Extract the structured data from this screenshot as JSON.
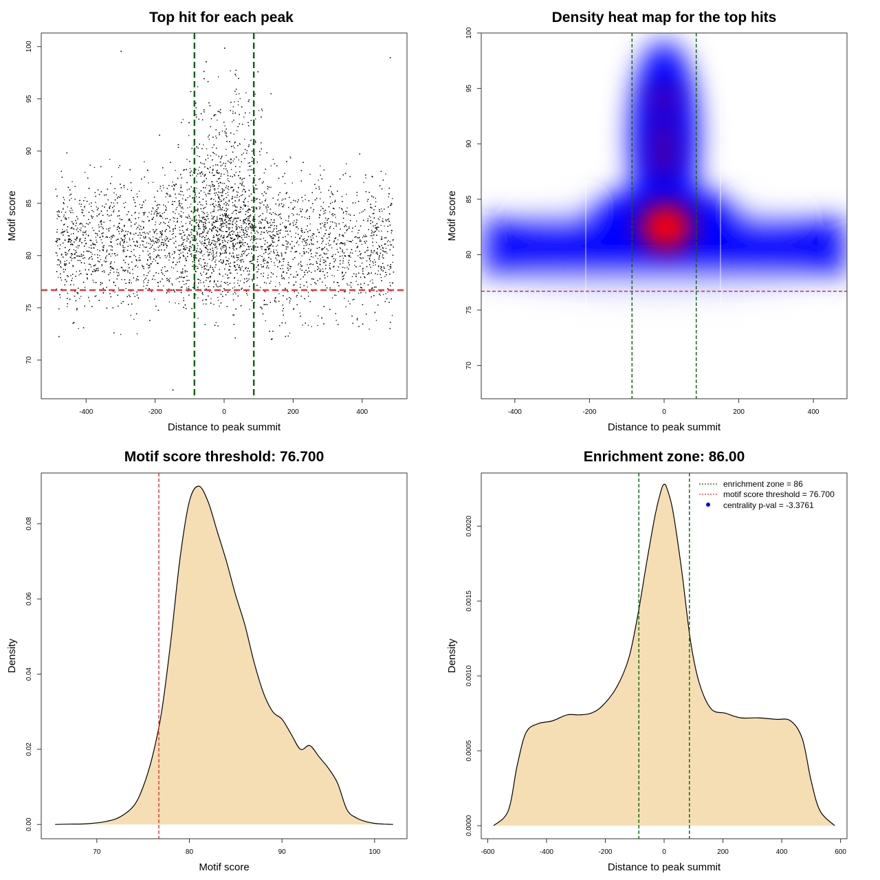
{
  "chart_data": [
    {
      "type": "scatter",
      "title": "Top hit for each peak",
      "xlabel": "Distance to peak summit",
      "ylabel": "Motif score",
      "xlim": [
        -530,
        530
      ],
      "ylim": [
        66.3,
        101.3
      ],
      "xticks": [
        -400,
        -200,
        0,
        200,
        400
      ],
      "yticks": [
        70,
        75,
        80,
        85,
        90,
        95,
        100
      ],
      "point_color": "#000000",
      "hlines": [
        {
          "y": 76.7,
          "color": "#ee2c2c",
          "style": "dashed"
        }
      ],
      "vlines": [
        {
          "x": -86,
          "color": "#006400",
          "style": "dashed"
        },
        {
          "x": 86,
          "color": "#006400",
          "style": "dashed"
        }
      ],
      "point_count_approx": 9000,
      "points_sample": [
        [
          -480,
          72.3
        ],
        [
          -150,
          67.2
        ],
        [
          -300,
          99.6
        ],
        [
          0,
          99.9
        ],
        [
          480,
          99.0
        ],
        [
          40,
          97.0
        ],
        [
          -60,
          94.0
        ],
        [
          20,
          90.5
        ],
        [
          -10,
          83.0
        ],
        [
          -350,
          81.0
        ],
        [
          350,
          80.0
        ],
        [
          200,
          78.0
        ],
        [
          -250,
          76.0
        ],
        [
          400,
          73.5
        ],
        [
          -100,
          88.0
        ],
        [
          120,
          86.0
        ]
      ]
    },
    {
      "type": "heatmap",
      "title": "Density heat map for the top hits",
      "xlabel": "Distance to peak summit",
      "ylabel": "Motif score",
      "xlim": [
        -490,
        490
      ],
      "ylim": [
        67.0,
        100.0
      ],
      "xticks": [
        -400,
        -200,
        0,
        200,
        400
      ],
      "yticks": [
        70,
        75,
        80,
        85,
        90,
        95,
        100
      ],
      "colors": {
        "low": "#ffffff",
        "mid": "#0000ff",
        "high": "#ff0000"
      },
      "hotspots": [
        {
          "x": 5,
          "y": 82.5,
          "intensity": "high"
        },
        {
          "x": 0,
          "y": 88.3,
          "intensity": "medium"
        },
        {
          "x": 0,
          "y": 90.7,
          "intensity": "medium"
        },
        {
          "x": 0,
          "y": 94.0,
          "intensity": "medium"
        }
      ],
      "hlines": [
        {
          "y": 76.7,
          "color": "#cd3333",
          "style": "dashed"
        }
      ],
      "vlines": [
        {
          "x": -86,
          "color": "#006400",
          "style": "dashed"
        },
        {
          "x": 86,
          "color": "#006400",
          "style": "dashed"
        }
      ]
    },
    {
      "type": "area",
      "title": "Motif score threshold: 76.700",
      "xlabel": "Motif score",
      "ylabel": "Density",
      "xlim": [
        64,
        103.5
      ],
      "ylim": [
        -0.0038,
        0.0935
      ],
      "xticks": [
        70,
        80,
        90,
        100
      ],
      "yticks": [
        0.0,
        0.02,
        0.04,
        0.06,
        0.08
      ],
      "ytick_labels": [
        "0.00",
        "0.02",
        "0.04",
        "0.06",
        "0.08"
      ],
      "fill_color": "#f5deb3",
      "vlines": [
        {
          "x": 76.7,
          "color": "#ee2c2c",
          "style": "dashed"
        }
      ],
      "x": [
        65.5,
        67,
        69,
        71,
        72.5,
        74,
        75,
        76,
        77,
        78,
        79,
        80,
        81,
        82,
        83,
        84,
        85,
        86,
        87,
        88,
        89,
        90,
        91,
        92,
        93,
        94,
        95,
        96,
        97,
        98,
        99,
        100,
        101,
        102
      ],
      "y": [
        0.0,
        0.0001,
        0.0002,
        0.0008,
        0.002,
        0.005,
        0.01,
        0.018,
        0.03,
        0.049,
        0.071,
        0.086,
        0.09,
        0.086,
        0.078,
        0.07,
        0.061,
        0.053,
        0.043,
        0.035,
        0.03,
        0.028,
        0.024,
        0.02,
        0.021,
        0.018,
        0.015,
        0.011,
        0.004,
        0.0018,
        0.0008,
        0.0003,
        0.0001,
        0.0
      ]
    },
    {
      "type": "area",
      "title": "Enrichment zone: 86.00",
      "xlabel": "Distance to peak summit",
      "ylabel": "Density",
      "xlim": [
        -622,
        622
      ],
      "ylim": [
        -8.75e-05,
        0.002355
      ],
      "xticks": [
        -600,
        -400,
        -200,
        0,
        200,
        400,
        600
      ],
      "yticks": [
        0.0,
        0.0005,
        0.001,
        0.0015,
        0.002
      ],
      "ytick_labels": [
        "0.0000",
        "0.0005",
        "0.0010",
        "0.0015",
        "0.0020"
      ],
      "fill_color": "#f5deb3",
      "vlines": [
        {
          "x": -86,
          "color": "#006400",
          "style": "dashed"
        },
        {
          "x": 86,
          "color": "#006400",
          "style": "dashed"
        }
      ],
      "x": [
        -580,
        -530,
        -500,
        -470,
        -430,
        -380,
        -330,
        -290,
        -250,
        -210,
        -160,
        -120,
        -90,
        -60,
        -30,
        -10,
        0,
        10,
        30,
        60,
        90,
        120,
        160,
        210,
        260,
        320,
        380,
        430,
        470,
        500,
        530,
        580
      ],
      "y": [
        0.0,
        0.0001,
        0.0004,
        0.00062,
        0.00068,
        0.0007,
        0.00074,
        0.00074,
        0.00075,
        0.0008,
        0.00093,
        0.00112,
        0.0014,
        0.00175,
        0.00208,
        0.00224,
        0.00228,
        0.00225,
        0.0021,
        0.0017,
        0.00123,
        0.00095,
        0.00078,
        0.00075,
        0.00072,
        0.00072,
        0.00071,
        0.0007,
        0.00058,
        0.0003,
        0.0001,
        0.0
      ],
      "legend": {
        "position": "top-right",
        "entries": [
          {
            "label": "enrichment zone = 86",
            "color": "#006400",
            "kind": "dotted-line"
          },
          {
            "label": "motif score threshold = 76.700",
            "color": "#ee2c2c",
            "kind": "dotted-line"
          },
          {
            "label": "centrality p-val = -3.3761",
            "color": "#0000ff",
            "kind": "point"
          }
        ]
      }
    }
  ]
}
